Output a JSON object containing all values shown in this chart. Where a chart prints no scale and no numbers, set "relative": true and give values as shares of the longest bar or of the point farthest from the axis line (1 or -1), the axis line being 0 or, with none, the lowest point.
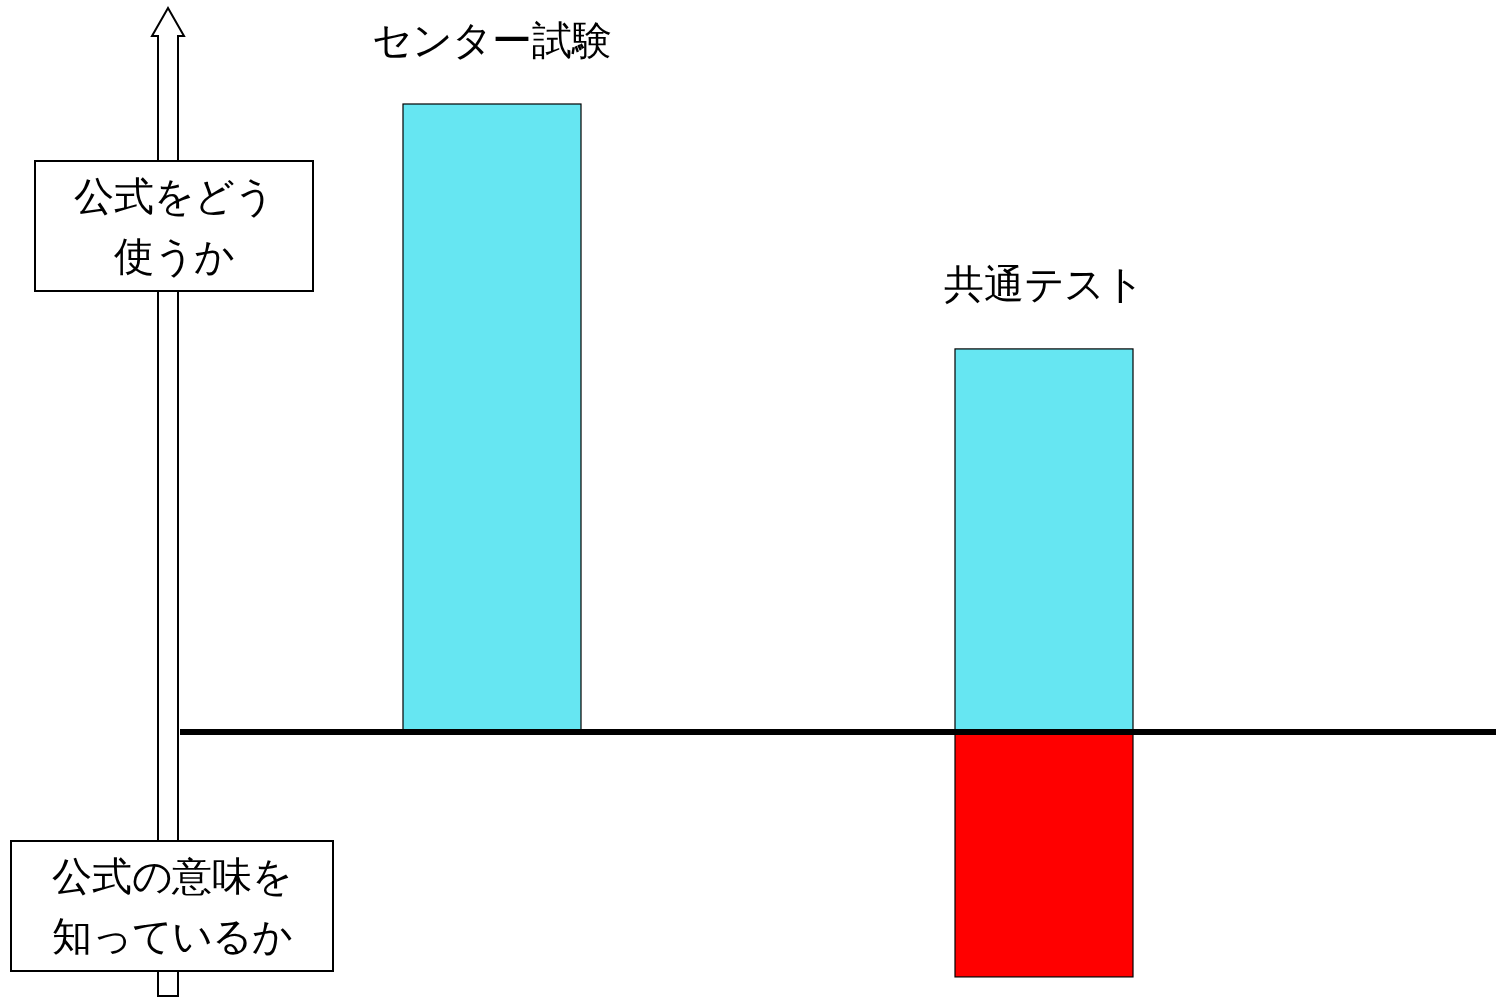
{
  "chart_data": {
    "type": "bar",
    "relative": true,
    "stacked": true,
    "categories": [
      "センター試験",
      "共通テスト"
    ],
    "series": [
      {
        "color": "#66e6f2",
        "values": [
          1,
          0.61
        ]
      },
      {
        "color": "#ff0000",
        "values": [
          null,
          -0.39
        ]
      }
    ],
    "annotations": [
      "公式をどう使うか",
      "公式の意味を知っているか"
    ]
  }
}
